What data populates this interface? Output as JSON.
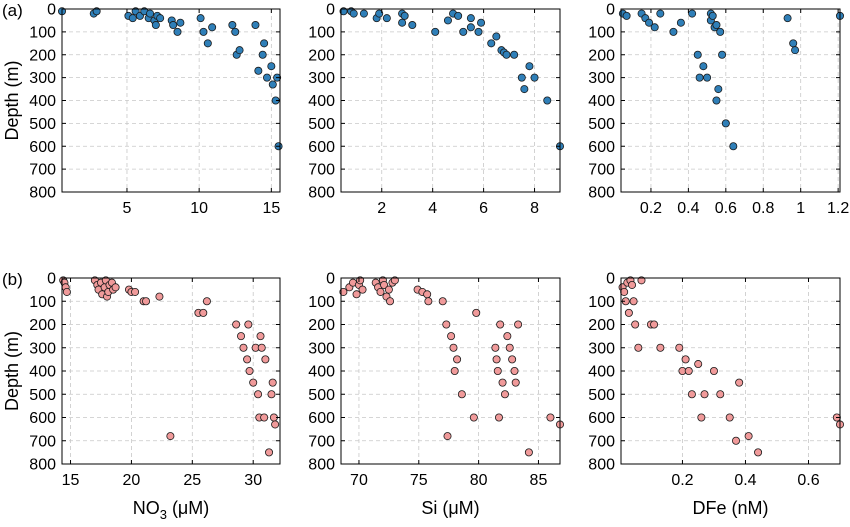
{
  "figure": {
    "depth_label": "Depth (m)",
    "depth_ticks": [
      0,
      100,
      200,
      300,
      400,
      500,
      600,
      700,
      800
    ]
  },
  "chart_data": [
    {
      "type": "scatter",
      "panel_label": "(a)",
      "xlabel": "",
      "ylabel": "Depth (m)",
      "xlim": [
        0.5,
        15.6
      ],
      "ylim": [
        800,
        0
      ],
      "y_inverted": true,
      "xticks": [
        5,
        10,
        15
      ],
      "yticks": [
        0,
        100,
        200,
        300,
        400,
        500,
        600,
        700,
        800
      ],
      "grid": true,
      "marker_color": "#2f7fb8",
      "x": [
        0.5,
        2.7,
        2.9,
        5.1,
        5.4,
        5.6,
        5.9,
        6.2,
        6.5,
        6.6,
        6.9,
        7.0,
        7.1,
        7.3,
        8.1,
        8.2,
        8.5,
        8.7,
        10.1,
        10.3,
        10.6,
        10.9,
        12.3,
        12.5,
        12.6,
        12.8,
        13.9,
        14.1,
        14.5,
        14.7,
        14.4,
        15.0,
        15.1,
        15.3,
        15.4,
        15.5
      ],
      "y": [
        10,
        20,
        10,
        30,
        40,
        10,
        30,
        10,
        40,
        20,
        50,
        70,
        30,
        40,
        50,
        70,
        100,
        60,
        40,
        100,
        150,
        80,
        70,
        100,
        200,
        180,
        70,
        270,
        150,
        300,
        200,
        250,
        330,
        400,
        300,
        600
      ]
    },
    {
      "type": "scatter",
      "panel_label": "",
      "xlabel": "",
      "ylabel": "",
      "xlim": [
        0.4,
        9.0
      ],
      "ylim": [
        800,
        0
      ],
      "y_inverted": true,
      "xticks": [
        2,
        4,
        6,
        8
      ],
      "yticks": [
        0,
        100,
        200,
        300,
        400,
        500,
        600,
        700,
        800
      ],
      "grid": true,
      "marker_color": "#2f7fb8",
      "x": [
        0.5,
        0.8,
        0.9,
        1.3,
        1.8,
        1.9,
        2.2,
        2.8,
        2.8,
        2.9,
        3.2,
        4.1,
        4.6,
        4.8,
        5.0,
        5.2,
        5.5,
        5.5,
        5.8,
        5.9,
        6.3,
        6.5,
        6.7,
        6.8,
        6.9,
        7.2,
        7.5,
        7.6,
        7.8,
        8.0,
        8.5,
        9.0
      ],
      "y": [
        10,
        10,
        20,
        20,
        40,
        20,
        40,
        60,
        20,
        30,
        70,
        100,
        50,
        20,
        30,
        100,
        80,
        40,
        100,
        60,
        150,
        120,
        180,
        190,
        200,
        200,
        300,
        350,
        250,
        300,
        400,
        600
      ]
    },
    {
      "type": "scatter",
      "panel_label": "",
      "xlabel": "",
      "ylabel": "",
      "xlim": [
        0.04,
        1.21
      ],
      "ylim": [
        800,
        0
      ],
      "y_inverted": true,
      "xticks": [
        0.2,
        0.4,
        0.6,
        0.8,
        1.0,
        1.2
      ],
      "xtick_labels": [
        "0.2",
        "0.4",
        "0.6",
        "0.8",
        "1",
        "1.2"
      ],
      "yticks": [
        0,
        100,
        200,
        300,
        400,
        500,
        600,
        700,
        800
      ],
      "grid": true,
      "marker_color": "#2f7fb8",
      "x": [
        0.05,
        0.07,
        0.15,
        0.17,
        0.19,
        0.22,
        0.25,
        0.32,
        0.36,
        0.42,
        0.45,
        0.46,
        0.48,
        0.5,
        0.52,
        0.52,
        0.53,
        0.54,
        0.55,
        0.55,
        0.56,
        0.57,
        0.58,
        0.6,
        0.64,
        0.93,
        0.96,
        0.97,
        1.21
      ],
      "y": [
        20,
        30,
        20,
        40,
        60,
        80,
        20,
        100,
        60,
        20,
        200,
        300,
        250,
        300,
        20,
        50,
        30,
        80,
        70,
        400,
        350,
        100,
        200,
        500,
        600,
        40,
        150,
        180,
        30
      ]
    },
    {
      "type": "scatter",
      "panel_label": "(b)",
      "xlabel": "NO₃ (μM)",
      "ylabel": "Depth (m)",
      "xlim": [
        14.3,
        32.2
      ],
      "ylim": [
        800,
        0
      ],
      "y_inverted": true,
      "xticks": [
        15,
        20,
        25,
        30
      ],
      "yticks": [
        0,
        100,
        200,
        300,
        400,
        500,
        600,
        700,
        800
      ],
      "grid": true,
      "marker_color": "#f09a9a",
      "x": [
        14.4,
        14.5,
        14.6,
        14.7,
        17.0,
        17.2,
        17.3,
        17.5,
        17.6,
        17.8,
        17.9,
        18.0,
        18.1,
        18.2,
        18.4,
        18.5,
        18.7,
        19.8,
        20.0,
        20.3,
        21.0,
        21.2,
        22.3,
        25.5,
        25.9,
        26.2,
        28.6,
        29.0,
        29.2,
        29.5,
        29.6,
        29.7,
        30.0,
        30.2,
        30.4,
        30.5,
        30.6,
        30.7,
        30.9,
        31.0,
        31.3,
        31.5,
        31.6,
        31.7,
        31.8,
        23.2
      ],
      "y": [
        10,
        20,
        40,
        60,
        10,
        30,
        50,
        20,
        70,
        40,
        10,
        80,
        60,
        30,
        20,
        50,
        40,
        50,
        60,
        60,
        100,
        100,
        80,
        150,
        150,
        100,
        200,
        250,
        300,
        350,
        200,
        400,
        450,
        300,
        500,
        600,
        250,
        300,
        600,
        350,
        750,
        500,
        450,
        600,
        630,
        680
      ]
    },
    {
      "type": "scatter",
      "panel_label": "",
      "xlabel": "Si (μM)",
      "ylabel": "",
      "xlim": [
        68.5,
        86.8
      ],
      "ylim": [
        800,
        0
      ],
      "y_inverted": true,
      "xticks": [
        70,
        75,
        80,
        85
      ],
      "yticks": [
        0,
        100,
        200,
        300,
        400,
        500,
        600,
        700,
        800
      ],
      "grid": true,
      "marker_color": "#f09a9a",
      "x": [
        68.7,
        69.2,
        69.5,
        69.8,
        70.0,
        70.1,
        70.3,
        71.4,
        71.6,
        71.8,
        72.0,
        72.1,
        72.3,
        72.5,
        72.6,
        72.8,
        73.0,
        74.9,
        75.3,
        75.7,
        75.8,
        77.0,
        77.3,
        77.4,
        77.7,
        77.9,
        78.0,
        78.2,
        78.6,
        79.6,
        79.8,
        81.4,
        81.5,
        81.6,
        81.7,
        81.8,
        82.0,
        82.2,
        82.4,
        82.6,
        82.8,
        83.0,
        83.1,
        83.3,
        84.2,
        86.0,
        86.8
      ],
      "y": [
        60,
        40,
        20,
        70,
        30,
        10,
        50,
        20,
        40,
        60,
        10,
        30,
        80,
        50,
        100,
        20,
        10,
        50,
        60,
        70,
        100,
        100,
        200,
        680,
        250,
        300,
        400,
        350,
        500,
        600,
        150,
        300,
        350,
        400,
        600,
        200,
        450,
        500,
        250,
        300,
        350,
        400,
        450,
        200,
        750,
        600,
        630
      ]
    },
    {
      "type": "scatter",
      "panel_label": "",
      "xlabel": "DFe (nM)",
      "ylabel": "",
      "xlim": [
        0.005,
        0.7
      ],
      "ylim": [
        800,
        0
      ],
      "y_inverted": true,
      "xticks": [
        0.2,
        0.4,
        0.6
      ],
      "yticks": [
        0,
        100,
        200,
        300,
        400,
        500,
        600,
        700,
        800
      ],
      "grid": true,
      "marker_color": "#f09a9a",
      "x": [
        0.01,
        0.015,
        0.02,
        0.025,
        0.03,
        0.035,
        0.04,
        0.045,
        0.05,
        0.06,
        0.07,
        0.1,
        0.11,
        0.13,
        0.19,
        0.2,
        0.21,
        0.22,
        0.23,
        0.25,
        0.26,
        0.27,
        0.3,
        0.32,
        0.35,
        0.37,
        0.38,
        0.41,
        0.44,
        0.69,
        0.7
      ],
      "y": [
        40,
        60,
        100,
        20,
        150,
        10,
        30,
        100,
        200,
        300,
        10,
        200,
        200,
        300,
        300,
        400,
        350,
        400,
        500,
        370,
        600,
        500,
        400,
        500,
        600,
        700,
        450,
        680,
        750,
        600,
        630
      ]
    }
  ]
}
